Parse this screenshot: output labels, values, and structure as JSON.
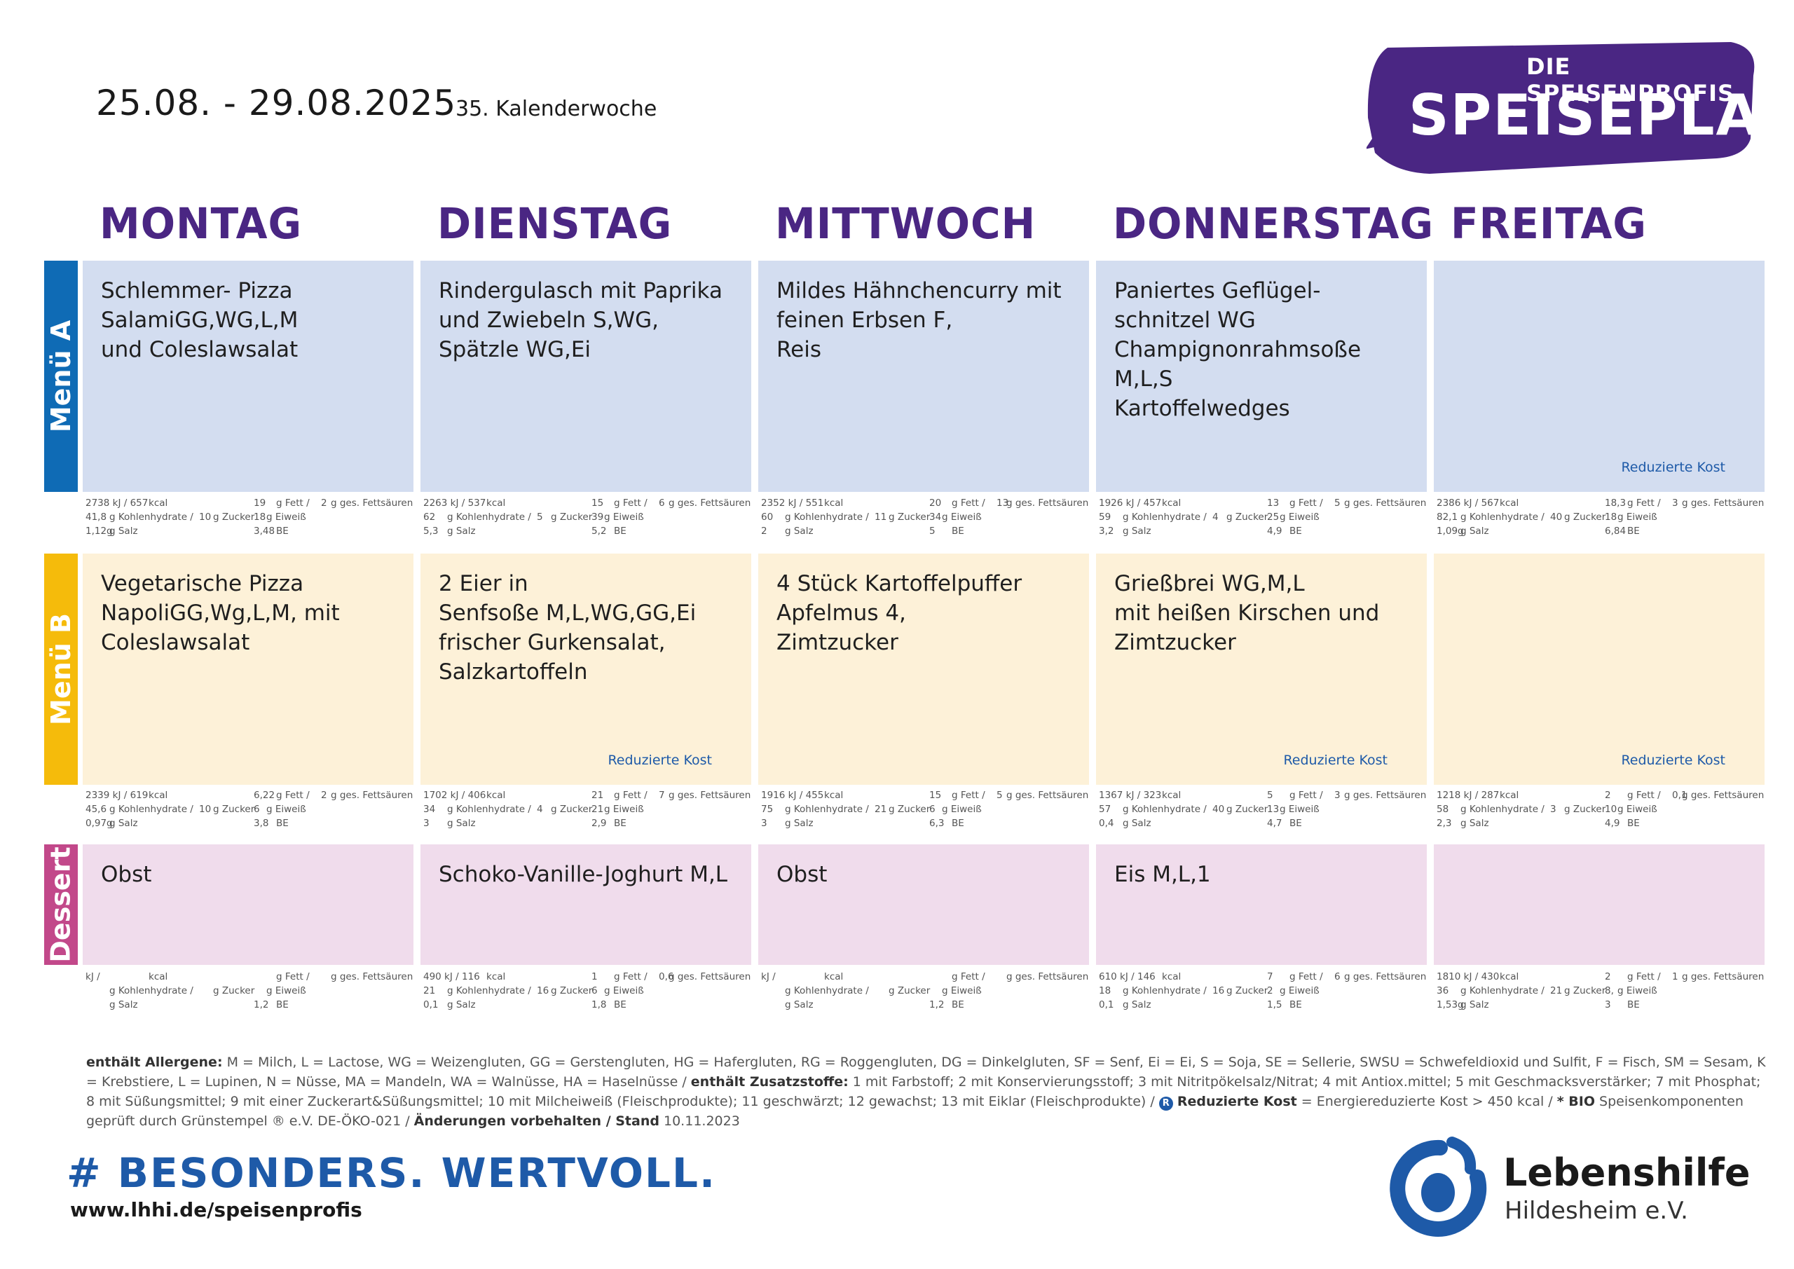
{
  "header": {
    "date_range": "25.08.  - 29.08.2025",
    "week": "35. Kalenderwoche"
  },
  "logo": {
    "subtitle": "DIE SPEISENPROFIS",
    "title": "SPEISEPLAN",
    "color": "#4a2683"
  },
  "days": [
    "MONTAG",
    "DIENSTAG",
    "MITTWOCH",
    "DONNERSTAG",
    "FREITAG"
  ],
  "rows": [
    {
      "label": "Menü A",
      "label_color": "#0f6bb5",
      "cell_color": "#d3ddf0",
      "cells": [
        {
          "text": "Schlemmer- Pizza\nSalamiGG,WG,L,M\nund Coleslawsalat",
          "reduced": "",
          "nut": {
            "kj": "2738 kJ / 657",
            "fett": "19",
            "gfat": "2",
            "kh": "41,8",
            "zucker": "10",
            "eiweiss": "18",
            "salz": "1,12g",
            "be": "3,48"
          }
        },
        {
          "text": "Rindergulasch mit Paprika\nund Zwiebeln S,WG,\nSpätzle WG,Ei",
          "reduced": "",
          "nut": {
            "kj": "2263 kJ / 537",
            "fett": "15",
            "gfat": "6",
            "kh": "62",
            "zucker": "5",
            "eiweiss": "39",
            "salz": "5,3",
            "be": "5,2"
          }
        },
        {
          "text": "Mildes Hähnchencurry mit\nfeinen Erbsen F,\nReis",
          "reduced": "",
          "nut": {
            "kj": "2352 kJ / 551",
            "fett": "20",
            "gfat": "13",
            "kh": "60",
            "zucker": "11",
            "eiweiss": "34",
            "salz": "2",
            "be": "5"
          }
        },
        {
          "text": "Paniertes Geflügel-\nschnitzel WG\nChampignonrahmsoße\nM,L,S\nKartoffelwedges",
          "reduced": "",
          "nut": {
            "kj": "1926 kJ / 457",
            "fett": "13",
            "gfat": "5",
            "kh": "59",
            "zucker": "4",
            "eiweiss": "25",
            "salz": "3,2",
            "be": "4,9"
          }
        },
        {
          "text": "",
          "reduced": "Reduzierte Kost",
          "nut": {
            "kj": "2386 kJ / 567",
            "fett": "18,3",
            "gfat": "3",
            "kh": "82,1",
            "zucker": "40",
            "eiweiss": "18",
            "salz": "1,09g",
            "be": "6,84"
          }
        }
      ]
    },
    {
      "label": "Menü B",
      "label_color": "#f5bb0b",
      "cell_color": "#fdf1d8",
      "cells": [
        {
          "text": "Vegetarische Pizza\nNapoliGG,Wg,L,M, mit\nColeslawsalat",
          "reduced": "",
          "nut": {
            "kj": "2339 kJ / 619",
            "fett": "6,22",
            "gfat": "2",
            "kh": "45,6",
            "zucker": "10",
            "eiweiss": "6",
            "salz": "0,97g",
            "be": "3,8"
          }
        },
        {
          "text": "2 Eier in\nSenfsoße M,L,WG,GG,Ei\nfrischer Gurkensalat,\nSalzkartoffeln",
          "reduced": "Reduzierte Kost",
          "nut": {
            "kj": "1702 kJ / 406",
            "fett": "21",
            "gfat": "7",
            "kh": "34",
            "zucker": "4",
            "eiweiss": "21",
            "salz": "3",
            "be": "2,9"
          }
        },
        {
          "text": "4 Stück Kartoffelpuffer\nApfelmus 4,\nZimtzucker",
          "reduced": "",
          "nut": {
            "kj": "1916 kJ / 455",
            "fett": "15",
            "gfat": "5",
            "kh": "75",
            "zucker": "21",
            "eiweiss": "6",
            "salz": "3",
            "be": "6,3"
          }
        },
        {
          "text": "Grießbrei WG,M,L\nmit heißen Kirschen und\nZimtzucker",
          "reduced": "Reduzierte Kost",
          "nut": {
            "kj": "1367 kJ / 323",
            "fett": "5",
            "gfat": "3",
            "kh": "57",
            "zucker": "40",
            "eiweiss": "13",
            "salz": "0,4",
            "be": "4,7"
          }
        },
        {
          "text": "",
          "reduced": "Reduzierte Kost",
          "nut": {
            "kj": "1218 kJ / 287",
            "fett": "2",
            "gfat": "0,1",
            "kh": "58",
            "zucker": "3",
            "eiweiss": "10",
            "salz": "2,3",
            "be": "4,9"
          }
        }
      ]
    },
    {
      "label": "Dessert",
      "label_color": "#c2488a",
      "cell_color": "#f0dcec",
      "cells": [
        {
          "text": "Obst",
          "reduced": "",
          "nut": {
            "kj": "kJ /",
            "fett": "",
            "gfat": "",
            "kh": "",
            "zucker": "",
            "eiweiss": "",
            "salz": "",
            "be": "1,2"
          }
        },
        {
          "text": "Schoko-Vanille-Joghurt M,L",
          "reduced": "",
          "nut": {
            "kj": "490  kJ / 116",
            "fett": "1",
            "gfat": "0,6",
            "kh": "21",
            "zucker": "16",
            "eiweiss": "6",
            "salz": "0,1",
            "be": "1,8"
          }
        },
        {
          "text": "Obst",
          "reduced": "",
          "nut": {
            "kj": "kJ /",
            "fett": "",
            "gfat": "",
            "kh": "",
            "zucker": "",
            "eiweiss": "",
            "salz": "",
            "be": "1,2"
          }
        },
        {
          "text": "Eis M,L,1",
          "reduced": "",
          "nut": {
            "kj": "610  kJ / 146",
            "fett": "7",
            "gfat": "6",
            "kh": "18",
            "zucker": "16",
            "eiweiss": "2",
            "salz": "0,1",
            "be": "1,5"
          }
        },
        {
          "text": "",
          "reduced": "",
          "nut": {
            "kj": "1810 kJ / 430",
            "fett": "2",
            "gfat": "1",
            "kh": "36",
            "zucker": "21",
            "eiweiss": "8,",
            "salz": "1,53g",
            "be": "3"
          }
        }
      ]
    }
  ],
  "nut_labels": {
    "kcal": "kcal",
    "fett": "g Fett /",
    "gfat": "g ges. Fettsäuren",
    "kh": "g Kohlenhydrate /",
    "zucker": "g Zucker",
    "eiweiss": "g Eiweiß",
    "salz": "g Salz",
    "be": "BE"
  },
  "legend": {
    "allergen_title": "enthält Allergene:",
    "allergen_text": " M = Milch, L = Lactose, WG = Weizengluten, GG = Gerstengluten, HG = Hafergluten, RG = Roggengluten, DG = Dinkelgluten, SF = Senf, Ei = Ei, S = Soja, SE = Sellerie, SWSU = Schwefeldioxid und Sulfit, F = Fisch, SM = Sesam, K = Krebstiere, L = Lupinen, N = Nüsse, MA = Mandeln, WA = Walnüsse, HA =  Haselnüsse / ",
    "additive_title": "enthält Zusatzstoffe:",
    "additive_text": " 1 mit Farbstoff; 2 mit Konservierungsstoff; 3 mit Nitritpökelsalz/Nitrat; 4 mit Antiox.mittel; 5 mit Geschmacksverstärker; 7 mit Phosphat; 8 mit Süßungsmittel; 9 mit einer Zuckerart&Süßungsmittel; 10 mit Milcheiweiß (Fleischprodukte); 11 geschwärzt; 12 gewachst; 13 mit Eiklar (Fleischprodukte) / ",
    "r_badge": "R",
    "reduced_title": "Reduzierte Kost",
    "reduced_text": " = Energiereduzierte Kost > 450 kcal / ",
    "bio_title": "* BIO",
    "bio_text": " Speisenkomponenten geprüft durch Grünstempel ® e.V. DE-ÖKO-021 / ",
    "changes_title": "Änderungen vorbehalten / Stand",
    "changes_date": "  10.11.2023"
  },
  "footer": {
    "hashtag": "# BESONDERS. WERTVOLL.",
    "url": "www.lhhi.de/speisenprofis",
    "org_name": "Lebenshilfe",
    "org_city": "Hildesheim e.V.",
    "brand_blue": "#1e5aa8"
  }
}
